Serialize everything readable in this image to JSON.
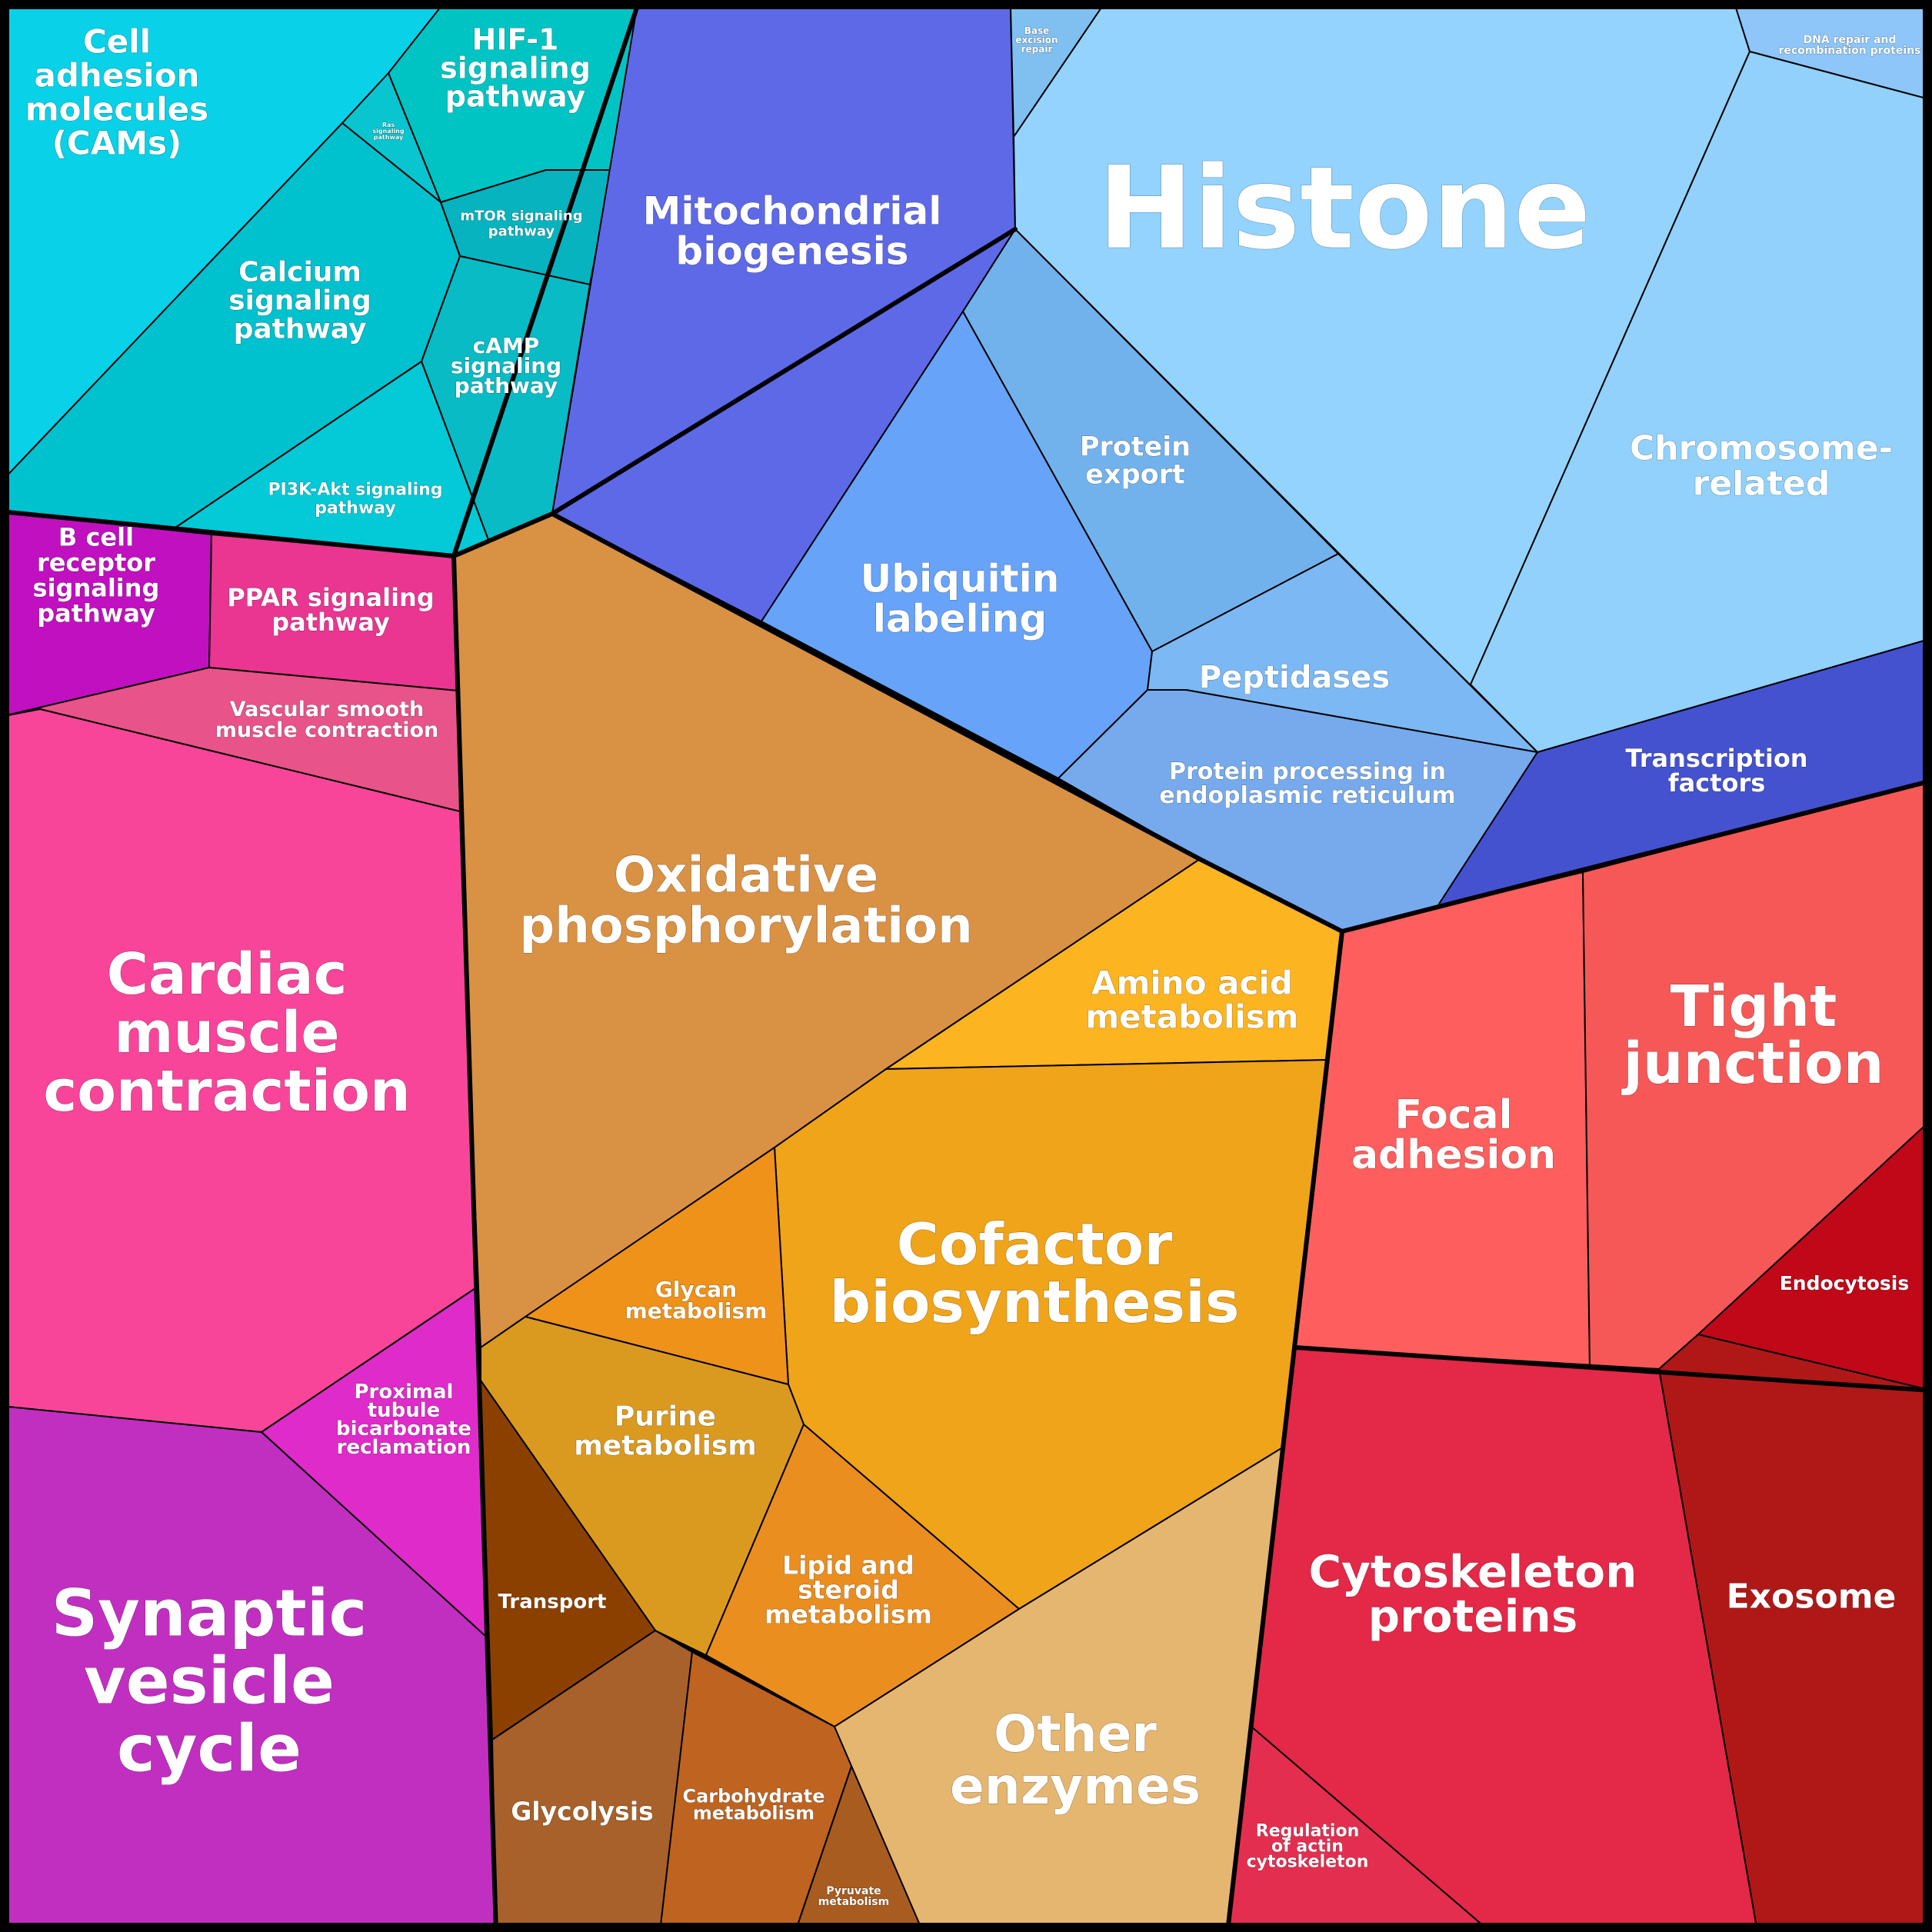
{
  "diagram": {
    "type": "voronoi-treemap",
    "title": ""
  },
  "cells": [
    {
      "id": "cell-adhesion-molecules",
      "label": [
        "Cell",
        "adhesion",
        "molecules",
        "(CAMs)"
      ],
      "color": "#08D1E8"
    },
    {
      "id": "hif1",
      "label": [
        "HIF-1",
        "signaling",
        "pathway"
      ],
      "color": "#00C4C4"
    },
    {
      "id": "ras",
      "label": [
        "Ras",
        "signaling",
        "pathway"
      ],
      "color": "#09C5CF"
    },
    {
      "id": "mtor",
      "label": [
        "mTOR signaling",
        "pathway"
      ],
      "color": "#06B3BE"
    },
    {
      "id": "calcium",
      "label": [
        "Calcium",
        "signaling",
        "pathway"
      ],
      "color": "#00C1CE"
    },
    {
      "id": "camp",
      "label": [
        "cAMP",
        "signaling",
        "pathway"
      ],
      "color": "#08BBC5"
    },
    {
      "id": "pi3k",
      "label": [
        "PI3K-Akt signaling",
        "pathway"
      ],
      "color": "#04C9D6"
    },
    {
      "id": "mito-bio",
      "label": [
        "Mitochondrial",
        "biogenesis"
      ],
      "color": "#5E69E8"
    },
    {
      "id": "base-excision",
      "label": [
        "Base",
        "excision",
        "repair"
      ],
      "color": "#80C0F0"
    },
    {
      "id": "histone",
      "label": [
        "Histone"
      ],
      "color": "#93D3FE"
    },
    {
      "id": "dna-repair",
      "label": [
        "DNA repair and",
        "recombination proteins"
      ],
      "color": "#8EC6FA"
    },
    {
      "id": "chromosome",
      "label": [
        "Chromosome-",
        "related"
      ],
      "color": "#91D1FC"
    },
    {
      "id": "protein-export",
      "label": [
        "Protein",
        "export"
      ],
      "color": "#72B2EC"
    },
    {
      "id": "ubiquitin",
      "label": [
        "Ubiquitin",
        "labeling"
      ],
      "color": "#67A3F8"
    },
    {
      "id": "peptidases",
      "label": [
        "Peptidases"
      ],
      "color": "#7CB8F3"
    },
    {
      "id": "protein-processing",
      "label": [
        "Protein processing in",
        "endoplasmic reticulum"
      ],
      "color": "#76AAEC"
    },
    {
      "id": "transcription",
      "label": [
        "Transcription",
        "factors"
      ],
      "color": "#4452D0"
    },
    {
      "id": "bcell",
      "label": [
        "B cell",
        "receptor",
        "signaling",
        "pathway"
      ],
      "color": "#C010C0"
    },
    {
      "id": "ppar",
      "label": [
        "PPAR signaling",
        "pathway"
      ],
      "color": "#EA3591"
    },
    {
      "id": "vascular",
      "label": [
        "Vascular smooth",
        "muscle contraction"
      ],
      "color": "#E8538A"
    },
    {
      "id": "cardiac",
      "label": [
        "Cardiac",
        "muscle",
        "contraction"
      ],
      "color": "#F8459A"
    },
    {
      "id": "oxphos",
      "label": [
        "Oxidative",
        "phosphorylation"
      ],
      "color": "#D99144"
    },
    {
      "id": "amino-acid",
      "label": [
        "Amino acid",
        "metabolism"
      ],
      "color": "#FCB421"
    },
    {
      "id": "cofactor",
      "label": [
        "Cofactor",
        "biosynthesis"
      ],
      "color": "#EFA41A"
    },
    {
      "id": "glycan",
      "label": [
        "Glycan",
        "metabolism"
      ],
      "color": "#EE921A"
    },
    {
      "id": "purine",
      "label": [
        "Purine",
        "metabolism"
      ],
      "color": "#DA9A20"
    },
    {
      "id": "lipid",
      "label": [
        "Lipid and",
        "steroid",
        "metabolism"
      ],
      "color": "#EA8E20"
    },
    {
      "id": "transport",
      "label": [
        "Transport"
      ],
      "color": "#8C4000"
    },
    {
      "id": "glycolysis",
      "label": [
        "Glycolysis"
      ],
      "color": "#A8612A"
    },
    {
      "id": "carbohydrate",
      "label": [
        "Carbohydrate",
        "metabolism"
      ],
      "color": "#BE6420"
    },
    {
      "id": "pyruvate",
      "label": [
        "Pyruvate",
        "metabolism"
      ],
      "color": "#A85C20"
    },
    {
      "id": "other-enzymes",
      "label": [
        "Other",
        "enzymes"
      ],
      "color": "#E5B670"
    },
    {
      "id": "proximal",
      "label": [
        "Proximal",
        "tubule",
        "bicarbonate",
        "reclamation"
      ],
      "color": "#DF2BCA"
    },
    {
      "id": "synaptic",
      "label": [
        "Synaptic",
        "vesicle",
        "cycle"
      ],
      "color": "#C12FC1"
    },
    {
      "id": "focal",
      "label": [
        "Focal",
        "adhesion"
      ],
      "color": "#FE5E5E"
    },
    {
      "id": "tight",
      "label": [
        "Tight",
        "junction"
      ],
      "color": "#F65858"
    },
    {
      "id": "endocytosis",
      "label": [
        "Endocytosis"
      ],
      "color": "#C00818"
    },
    {
      "id": "exosome",
      "label": [
        "Exosome"
      ],
      "color": "#B01818"
    },
    {
      "id": "cytoskeleton",
      "label": [
        "Cytoskeleton",
        "proteins"
      ],
      "color": "#E42848"
    },
    {
      "id": "actin",
      "label": [
        "Regulation",
        "of actin",
        "cytoskeleton"
      ],
      "color": "#E42E50"
    }
  ]
}
